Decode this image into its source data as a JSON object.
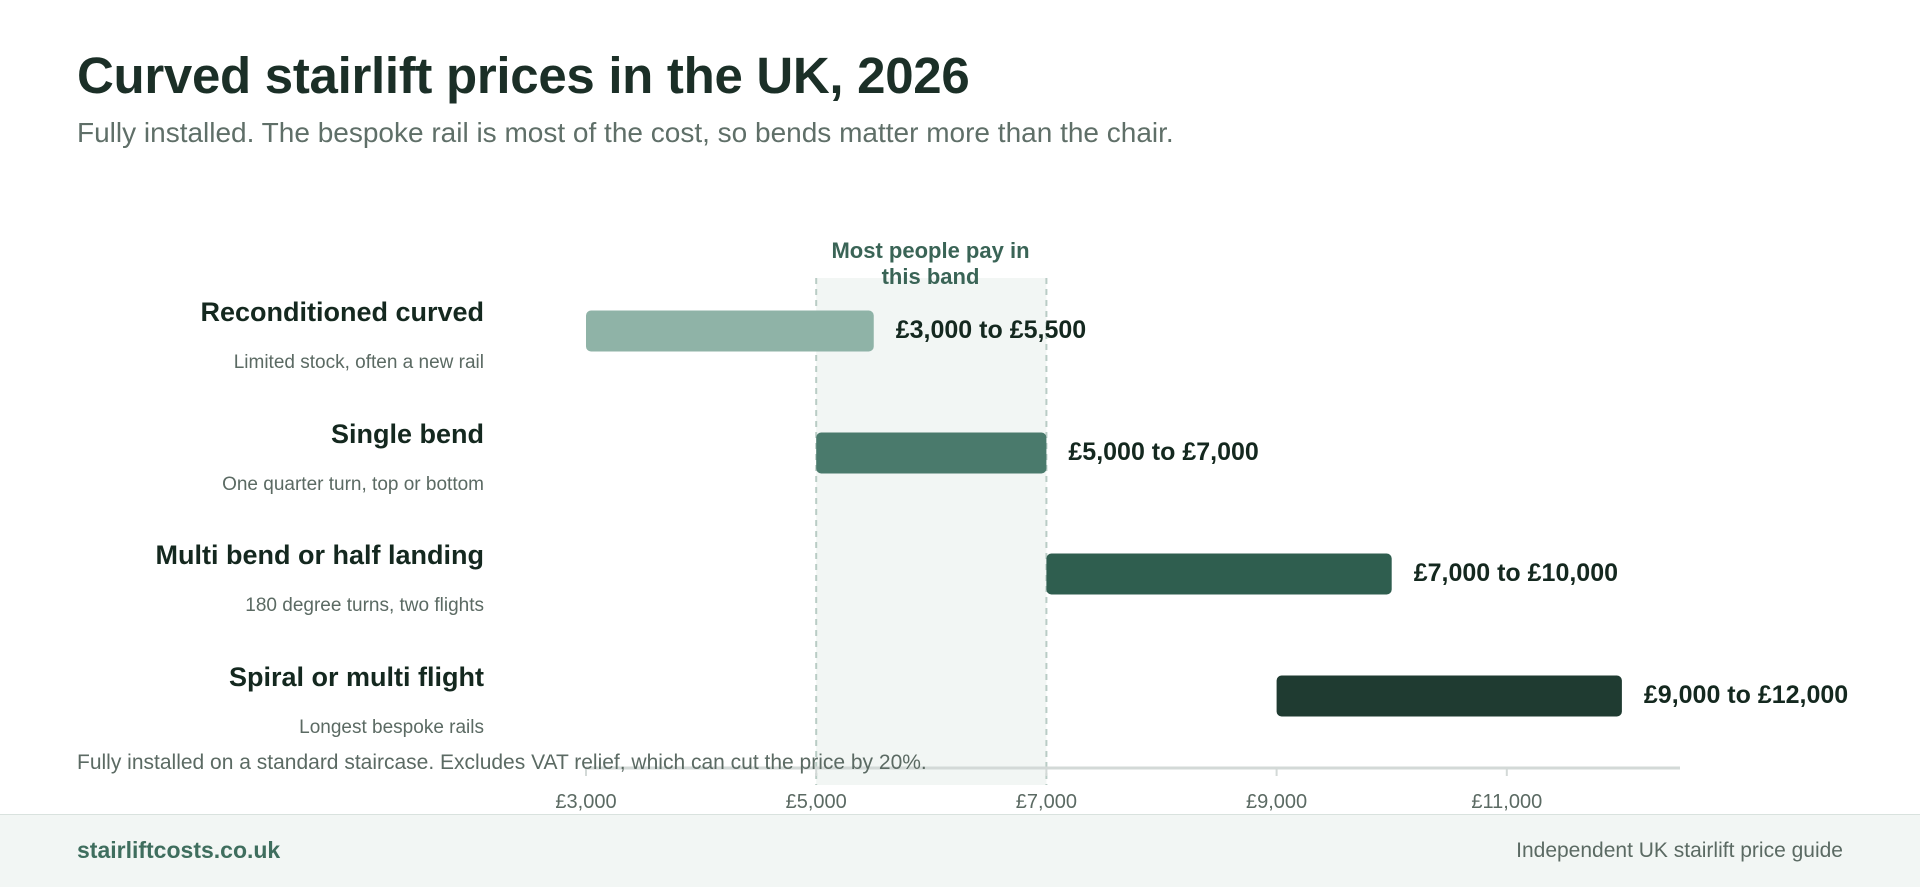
{
  "page": {
    "title": "Curved stairlift prices in the UK, 2026",
    "subtitle": "Fully installed. The bespoke rail is most of the cost, so bends matter more than the chair."
  },
  "chart_data": {
    "type": "bar",
    "orientation": "horizontal-range",
    "currency": "£",
    "title": "Curved stairlift prices in the UK, 2026",
    "subtitle": "Fully installed. The bespoke rail is most of the cost, so bends matter more than the chair.",
    "xlim": [
      3000,
      12000
    ],
    "x_ticks": [
      3000,
      5000,
      7000,
      9000,
      11000
    ],
    "x_tick_labels": [
      "£3,000",
      "£5,000",
      "£7,000",
      "£9,000",
      "£11,000"
    ],
    "grid": false,
    "highlight_band": {
      "from": 5000,
      "to": 7000,
      "label": "Most people pay in this band"
    },
    "series": [
      {
        "category": "Reconditioned curved",
        "note": "Limited stock, often a new rail",
        "low": 3000,
        "high": 5500,
        "label": "£3,000 to £5,500",
        "color": "#8fb3a7"
      },
      {
        "category": "Single bend",
        "note": "One quarter turn, top or bottom",
        "low": 5000,
        "high": 7000,
        "label": "£5,000 to £7,000",
        "color": "#4a7a6c"
      },
      {
        "category": "Multi bend or half landing",
        "note": "180 degree turns, two flights",
        "low": 7000,
        "high": 10000,
        "label": "£7,000 to £10,000",
        "color": "#2f5e4f"
      },
      {
        "category": "Spiral or multi flight",
        "note": "Longest bespoke rails",
        "low": 9000,
        "high": 12000,
        "label": "£9,000 to £12,000",
        "color": "#1f3b31"
      }
    ],
    "footnote": "Fully installed on a standard staircase. Excludes VAT relief, which can cut the price by 20%."
  },
  "footer": {
    "brand": "stairliftcosts.co.uk",
    "tagline": "Independent UK stairlift price guide"
  },
  "colors": {
    "band_fill": "#f2f6f4",
    "band_line": "#b9ccc5",
    "axis_line": "#d3d9d7",
    "title_text": "#1b2f27"
  }
}
